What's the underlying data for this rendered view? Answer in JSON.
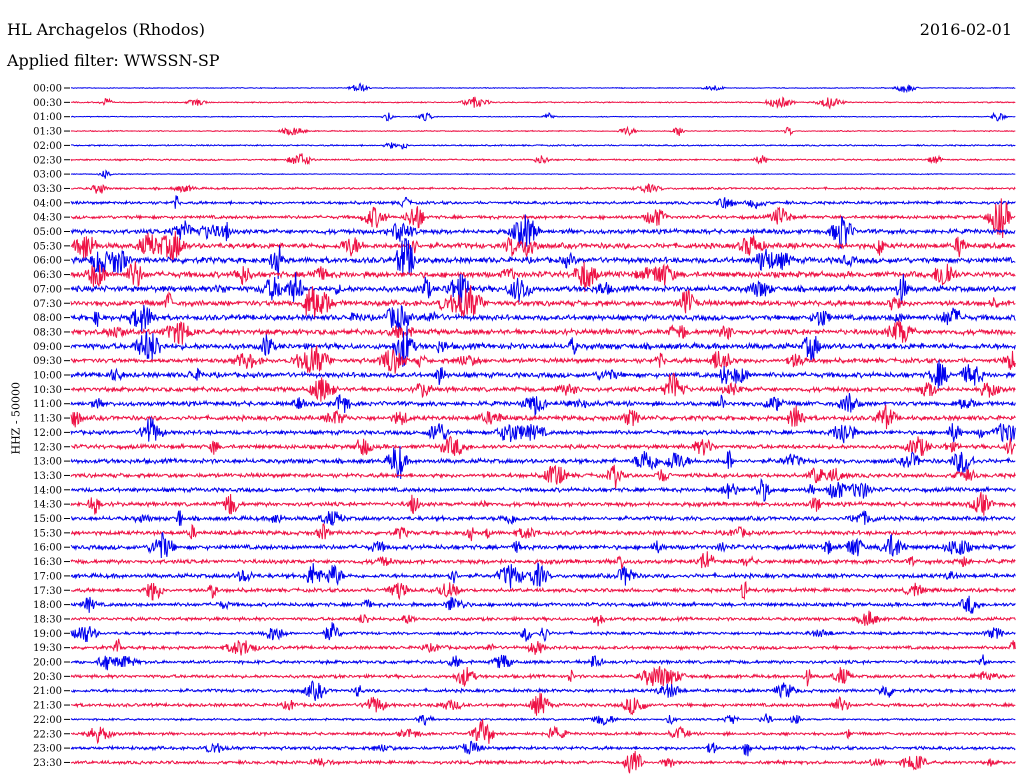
{
  "header": {
    "station": "HL Archagelos (Rhodos)",
    "date": "2016-02-01",
    "filter": "Applied filter: WWSSN-SP",
    "channel": "HHZ - 50000"
  },
  "colors": {
    "blue": "#0000ee",
    "red": "#ee1144"
  },
  "chart_data": {
    "type": "line",
    "title": "HL Archagelos (Rhodos)",
    "ylabel": "HHZ - 50000",
    "row_labels": [
      "00:00",
      "00:30",
      "01:00",
      "01:30",
      "02:00",
      "02:30",
      "03:00",
      "03:30",
      "04:00",
      "04:30",
      "05:00",
      "05:30",
      "06:00",
      "06:30",
      "07:00",
      "07:30",
      "08:00",
      "08:30",
      "09:00",
      "09:30",
      "10:00",
      "10:30",
      "11:00",
      "11:30",
      "12:00",
      "12:30",
      "13:00",
      "13:30",
      "14:00",
      "14:30",
      "15:00",
      "15:30",
      "16:00",
      "16:30",
      "17:00",
      "17:30",
      "18:00",
      "18:30",
      "19:00",
      "19:30",
      "20:00",
      "20:30",
      "21:00",
      "21:30",
      "22:00",
      "22:30",
      "23:00",
      "23:30"
    ],
    "series_colors": [
      "blue",
      "red"
    ],
    "noise_level": [
      0.4,
      0.6,
      0.4,
      0.5,
      0.7,
      0.8,
      0.4,
      1.0,
      1.4,
      1.6,
      2.2,
      2.6,
      2.8,
      2.8,
      2.8,
      2.6,
      2.6,
      2.6,
      2.8,
      2.2,
      2.4,
      2.2,
      2.2,
      2.2,
      2.0,
      2.0,
      2.2,
      2.0,
      2.0,
      2.0,
      2.0,
      2.0,
      2.2,
      2.0,
      2.0,
      1.8,
      1.8,
      1.6,
      1.4,
      1.6,
      1.6,
      1.6,
      1.6,
      1.6,
      1.0,
      1.4,
      1.6,
      1.6
    ]
  }
}
